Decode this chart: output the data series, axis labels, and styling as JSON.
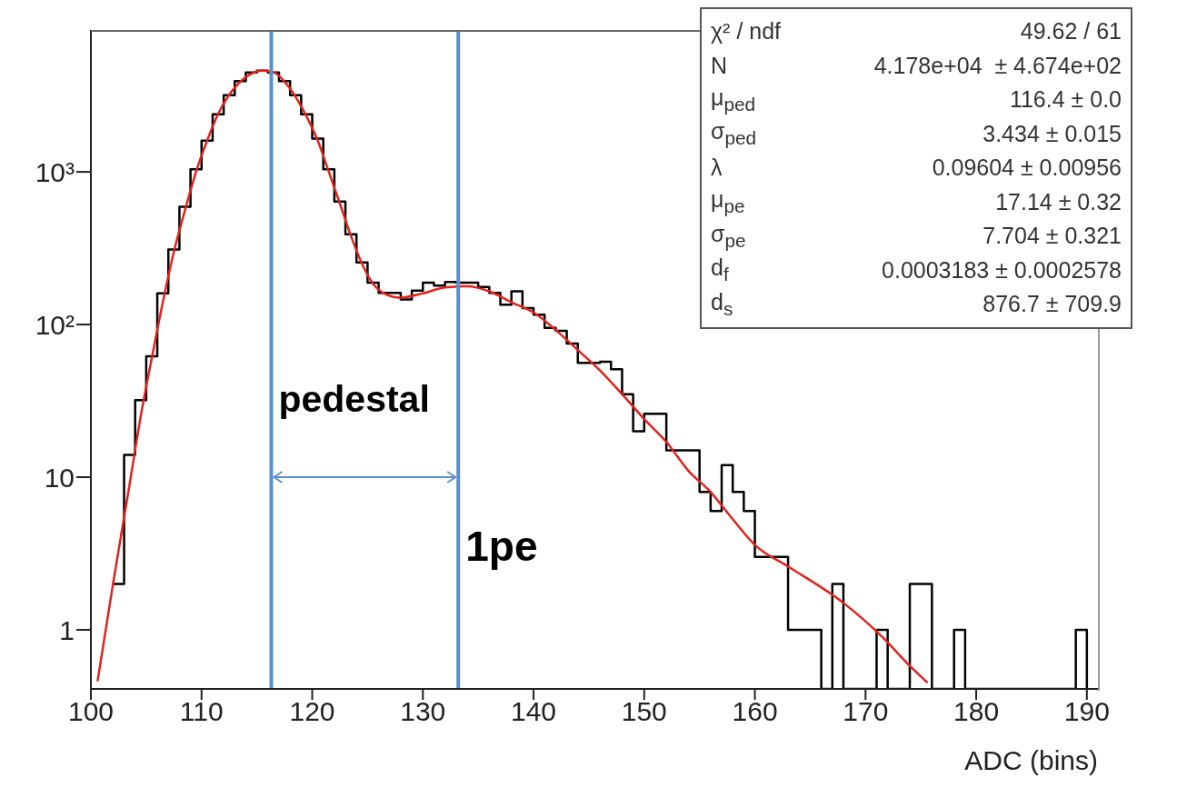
{
  "chart_data": {
    "type": "histogram",
    "xlabel": "ADC (bins)",
    "bins": [
      102,
      103,
      104,
      105,
      106,
      107,
      108,
      109,
      110,
      111,
      112,
      113,
      114,
      115,
      116,
      117,
      118,
      119,
      120,
      121,
      122,
      123,
      124,
      125,
      126,
      127,
      128,
      129,
      130,
      131,
      132,
      133,
      134,
      135,
      136,
      137,
      138,
      139,
      140,
      141,
      142,
      143,
      144,
      145,
      146,
      147,
      148,
      149,
      150,
      151,
      152,
      153,
      154,
      155,
      156,
      157,
      158,
      159,
      160,
      161,
      162,
      163,
      164,
      165,
      166,
      167,
      168,
      169,
      170,
      171,
      172,
      173,
      174,
      175,
      176,
      177,
      178,
      179,
      180,
      181,
      182,
      183,
      184,
      185,
      186,
      187,
      188,
      189,
      190
    ],
    "values": [
      2,
      14,
      32,
      62,
      160,
      310,
      590,
      1040,
      1600,
      2380,
      3180,
      3930,
      4480,
      4600,
      4480,
      3930,
      3180,
      2380,
      1650,
      1040,
      640,
      390,
      255,
      188,
      161,
      161,
      146,
      167,
      188,
      180,
      190,
      188,
      188,
      176,
      161,
      135,
      165,
      128,
      116,
      95,
      91,
      75,
      56,
      56,
      57,
      51,
      35,
      20,
      26,
      26,
      15,
      15,
      15,
      8,
      6,
      12,
      8,
      6,
      3,
      3,
      3,
      1,
      1,
      1,
      null,
      2,
      null,
      null,
      null,
      1,
      null,
      null,
      2,
      2,
      null,
      null,
      1,
      null,
      null,
      null,
      null,
      null,
      null,
      null,
      null,
      null,
      null,
      1
    ],
    "color": "#000000",
    "series": [
      {
        "type": "line",
        "color": "#e3221c",
        "x": [
          100.6,
          102,
          103.5,
          104.5,
          105.5,
          106.5,
          107.5,
          108.5,
          109.5,
          110.5,
          111.5,
          112.5,
          113.5,
          114.5,
          115.5,
          116.5,
          117.5,
          118.5,
          119.5,
          120.5,
          121.5,
          122.5,
          123.5,
          124.5,
          125.5,
          126.5,
          128,
          130,
          132,
          134,
          136,
          138,
          140,
          142,
          144,
          146,
          148,
          150,
          152,
          154,
          156,
          158,
          160,
          163,
          168,
          171.5,
          174,
          175.6
        ],
        "values": [
          0.46,
          2,
          9,
          25,
          60,
          140,
          300,
          560,
          1000,
          1600,
          2400,
          3200,
          3900,
          4400,
          4600,
          4500,
          3900,
          3100,
          2300,
          1600,
          1000,
          620,
          380,
          250,
          185,
          160,
          150,
          160,
          175,
          178,
          165,
          140,
          120,
          92,
          68,
          50,
          35,
          24,
          17,
          11,
          8,
          5.3,
          3.6,
          2.6,
          1.5,
          0.9,
          0.58,
          0.45
        ]
      }
    ],
    "xlim": [
      100,
      191
    ],
    "xticks": [
      100,
      110,
      120,
      130,
      140,
      150,
      160,
      170,
      180,
      190
    ],
    "log": "y",
    "ylim": [
      0.41,
      8500
    ],
    "yticks": [
      1,
      10,
      {
        "value": 100,
        "label": "10²"
      },
      {
        "value": 1000,
        "label": "10³"
      }
    ],
    "ref_lines": [
      {
        "axis": "x",
        "value": 116.3,
        "color": "#5b8fd0"
      },
      {
        "axis": "x",
        "value": 133.2,
        "color": "#5b8fd0"
      }
    ],
    "annotations": [
      "χ² / ndf",
      "49.62 / 61",
      "N",
      "4.178e+04  ± 4.674e+02",
      "μ$_{ped}$",
      "116.4 ± 0.0",
      "σ$_{ped}$",
      "3.434 ± 0.015",
      "λ",
      "0.09604 ± 0.00956",
      "μ$_{pe}$",
      "17.14 ± 0.32",
      "σ$_{pe}$",
      "7.704 ± 0.321",
      "d$_{f}$",
      "0.0003183 ± 0.0002578",
      "d$_{s}$",
      "876.7 ± 709.9",
      "pedestal",
      {
        "text": "1pe",
        "x": 133.2,
        "y": 10
      }
    ]
  }
}
